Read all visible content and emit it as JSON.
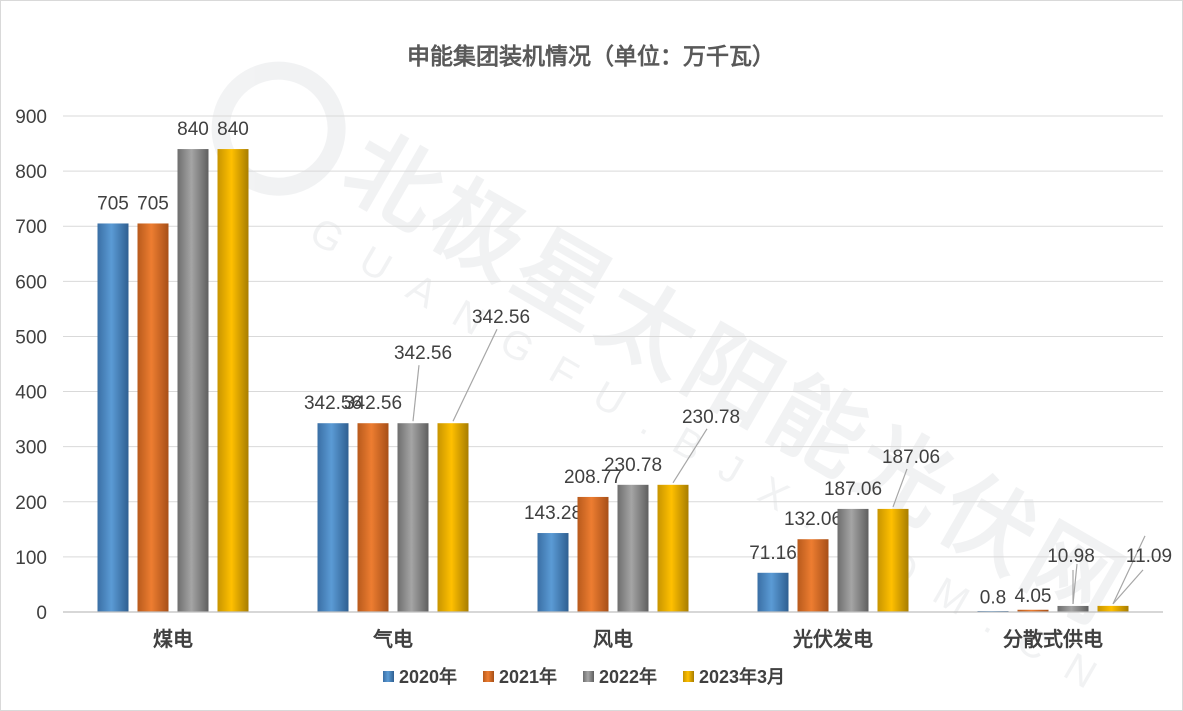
{
  "chart_data": {
    "type": "bar",
    "title": "申能集团装机情况（单位：万千瓦）",
    "categories": [
      "煤电",
      "气电",
      "风电",
      "光伏发电",
      "分散式供电"
    ],
    "series": [
      {
        "name": "2020年",
        "values": [
          705,
          342.56,
          143.28,
          71.16,
          0.8
        ],
        "labels": [
          "705",
          "342.56",
          "143.28",
          "71.16",
          "0.8"
        ],
        "color": "#5b9bd5"
      },
      {
        "name": "2021年",
        "values": [
          705,
          342.56,
          208.77,
          132.06,
          4.05
        ],
        "labels": [
          "705",
          "342.56",
          "208.77",
          "132.06",
          "4.05"
        ],
        "color": "#ed7d31"
      },
      {
        "name": "2022年",
        "values": [
          840,
          342.56,
          230.78,
          187.06,
          10.98
        ],
        "labels": [
          "840",
          "342.56",
          "230.78",
          "187.06",
          "10.98"
        ],
        "color": "#a5a5a5"
      },
      {
        "name": "2023年3月",
        "values": [
          840,
          342.56,
          230.78,
          187.06,
          11.09
        ],
        "labels": [
          "840",
          "342.56",
          "230.78",
          "187.06",
          "11.09"
        ],
        "color": "#ffc000"
      }
    ],
    "ylim": [
      0,
      900
    ],
    "yticks": [
      0,
      100,
      200,
      300,
      400,
      500,
      600,
      700,
      800,
      900
    ],
    "grid": true,
    "legend": "bottom",
    "xlabel": "",
    "ylabel": "",
    "watermark": {
      "text": "北极星太阳能光伏网",
      "subtext": "GUANGFU.BJX.COM.CN"
    }
  }
}
